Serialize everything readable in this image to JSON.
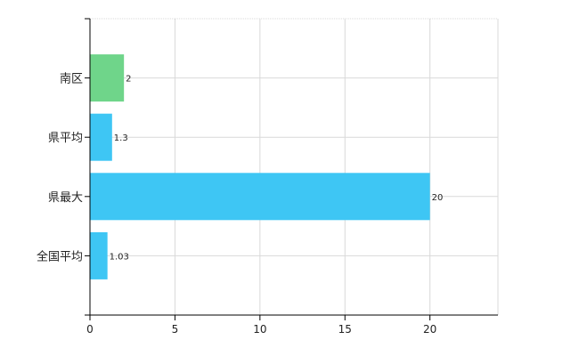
{
  "chart_data": {
    "type": "bar",
    "orientation": "horizontal",
    "categories": [
      "全国平均",
      "県最大",
      "県平均",
      "南区"
    ],
    "values": [
      1.03,
      20,
      1.3,
      2
    ],
    "data_labels": [
      "1.03",
      "20",
      "1.3",
      "2"
    ],
    "bar_colors": [
      "#3ec6f4",
      "#3ec6f4",
      "#3ec6f4",
      "#6fd58a"
    ],
    "xlim": [
      0,
      24
    ],
    "xticks": [
      0,
      5,
      10,
      15,
      20
    ],
    "xtick_labels": [
      "0",
      "5",
      "10",
      "15",
      "20"
    ],
    "grid": true,
    "legend": false
  }
}
